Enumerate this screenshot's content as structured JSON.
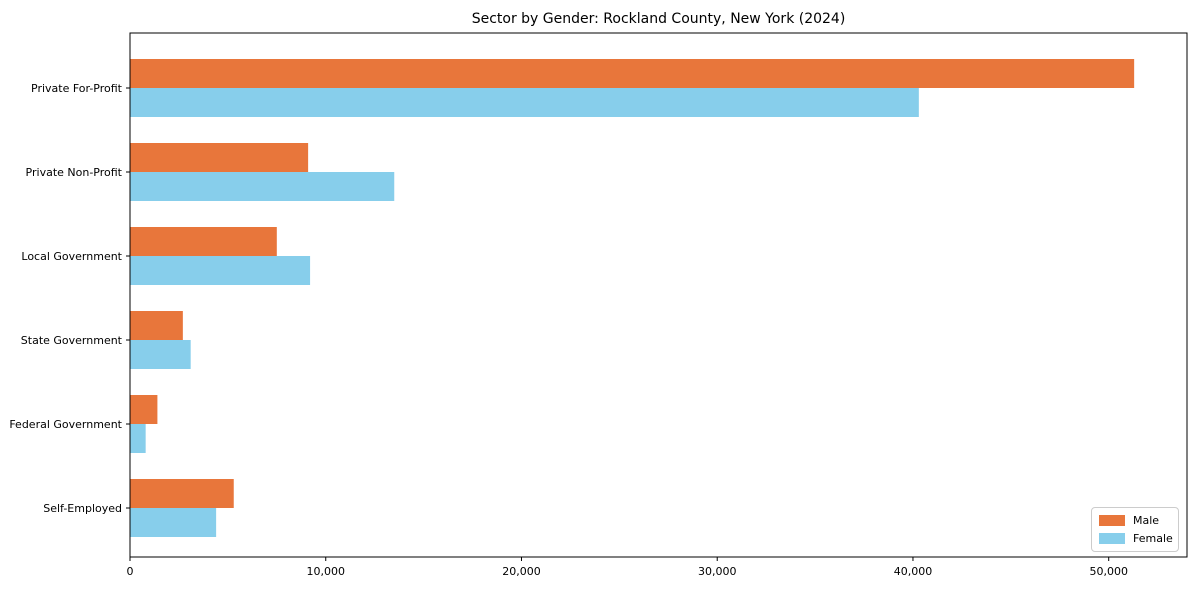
{
  "title": "Sector by Gender: Rockland County, New York (2024)",
  "chart_data": {
    "type": "bar",
    "orientation": "horizontal",
    "title": "Sector by Gender: Rockland County, New York (2024)",
    "categories": [
      "Private For-Profit",
      "Private Non-Profit",
      "Local Government",
      "State Government",
      "Federal Government",
      "Self-Employed"
    ],
    "series": [
      {
        "name": "Male",
        "color": "#e8763b",
        "values": [
          51300,
          9100,
          7500,
          2700,
          1400,
          5300
        ]
      },
      {
        "name": "Female",
        "color": "#87ceeb",
        "values": [
          40300,
          13500,
          9200,
          3100,
          800,
          4400
        ]
      }
    ],
    "xlabel": "",
    "ylabel": "",
    "xlim": [
      0,
      54000
    ],
    "x_ticks": [
      0,
      10000,
      20000,
      30000,
      40000,
      50000
    ],
    "x_tick_labels": [
      "0",
      "10,000",
      "20,000",
      "30,000",
      "40,000",
      "50,000"
    ],
    "grid": false,
    "legend_position": "lower right",
    "frame_color": "#000000",
    "background_color": "#ffffff"
  }
}
